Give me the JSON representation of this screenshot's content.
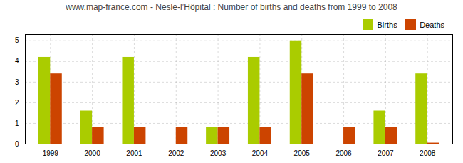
{
  "chart_data": {
    "type": "bar",
    "title": "www.map-france.com - Nesle-l’Hôpital : Number of births and deaths from 1999 to 2008",
    "categories": [
      "1999",
      "2000",
      "2001",
      "2002",
      "2003",
      "2004",
      "2005",
      "2006",
      "2007",
      "2008"
    ],
    "series": [
      {
        "name": "Births",
        "color": "#aacc00",
        "values": [
          4.2,
          1.6,
          4.2,
          0.0,
          0.8,
          4.2,
          5.0,
          0.0,
          1.6,
          3.4
        ]
      },
      {
        "name": "Deaths",
        "color": "#cc4400",
        "values": [
          3.4,
          0.8,
          0.8,
          0.8,
          0.8,
          0.8,
          3.4,
          0.8,
          0.8,
          0.05
        ]
      }
    ],
    "ylim": [
      0,
      5.3
    ],
    "yticks": [
      0,
      1,
      2,
      3,
      4,
      5
    ],
    "grid": true,
    "legend": "upper right"
  }
}
